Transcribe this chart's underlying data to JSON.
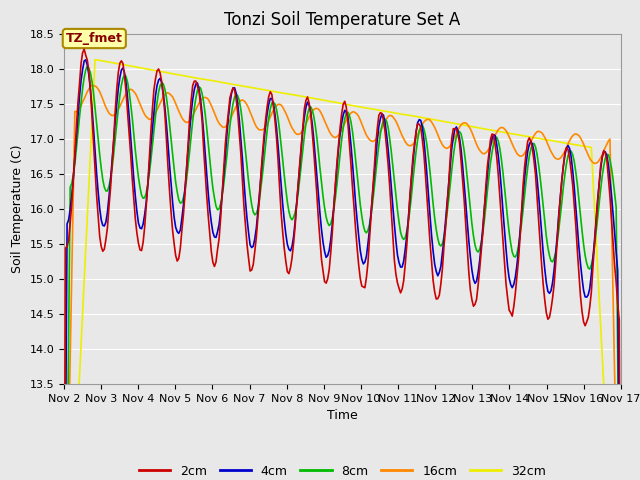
{
  "title": "Tonzi Soil Temperature Set A",
  "xlabel": "Time",
  "ylabel": "Soil Temperature (C)",
  "ylim": [
    13.5,
    18.5
  ],
  "line_colors": {
    "2cm": "#cc0000",
    "4cm": "#0000cc",
    "8cm": "#00bb00",
    "16cm": "#ff8800",
    "32cm": "#eeee00"
  },
  "annotation_text": "TZ_fmet",
  "annotation_color": "#880000",
  "annotation_bg": "#ffffaa",
  "annotation_edge": "#aa8800",
  "plot_bg": "#e8e8e8",
  "fig_bg": "#e8e8e8",
  "grid_color": "#ffffff",
  "title_fontsize": 12,
  "axis_fontsize": 9,
  "tick_fontsize": 8,
  "legend_fontsize": 9
}
